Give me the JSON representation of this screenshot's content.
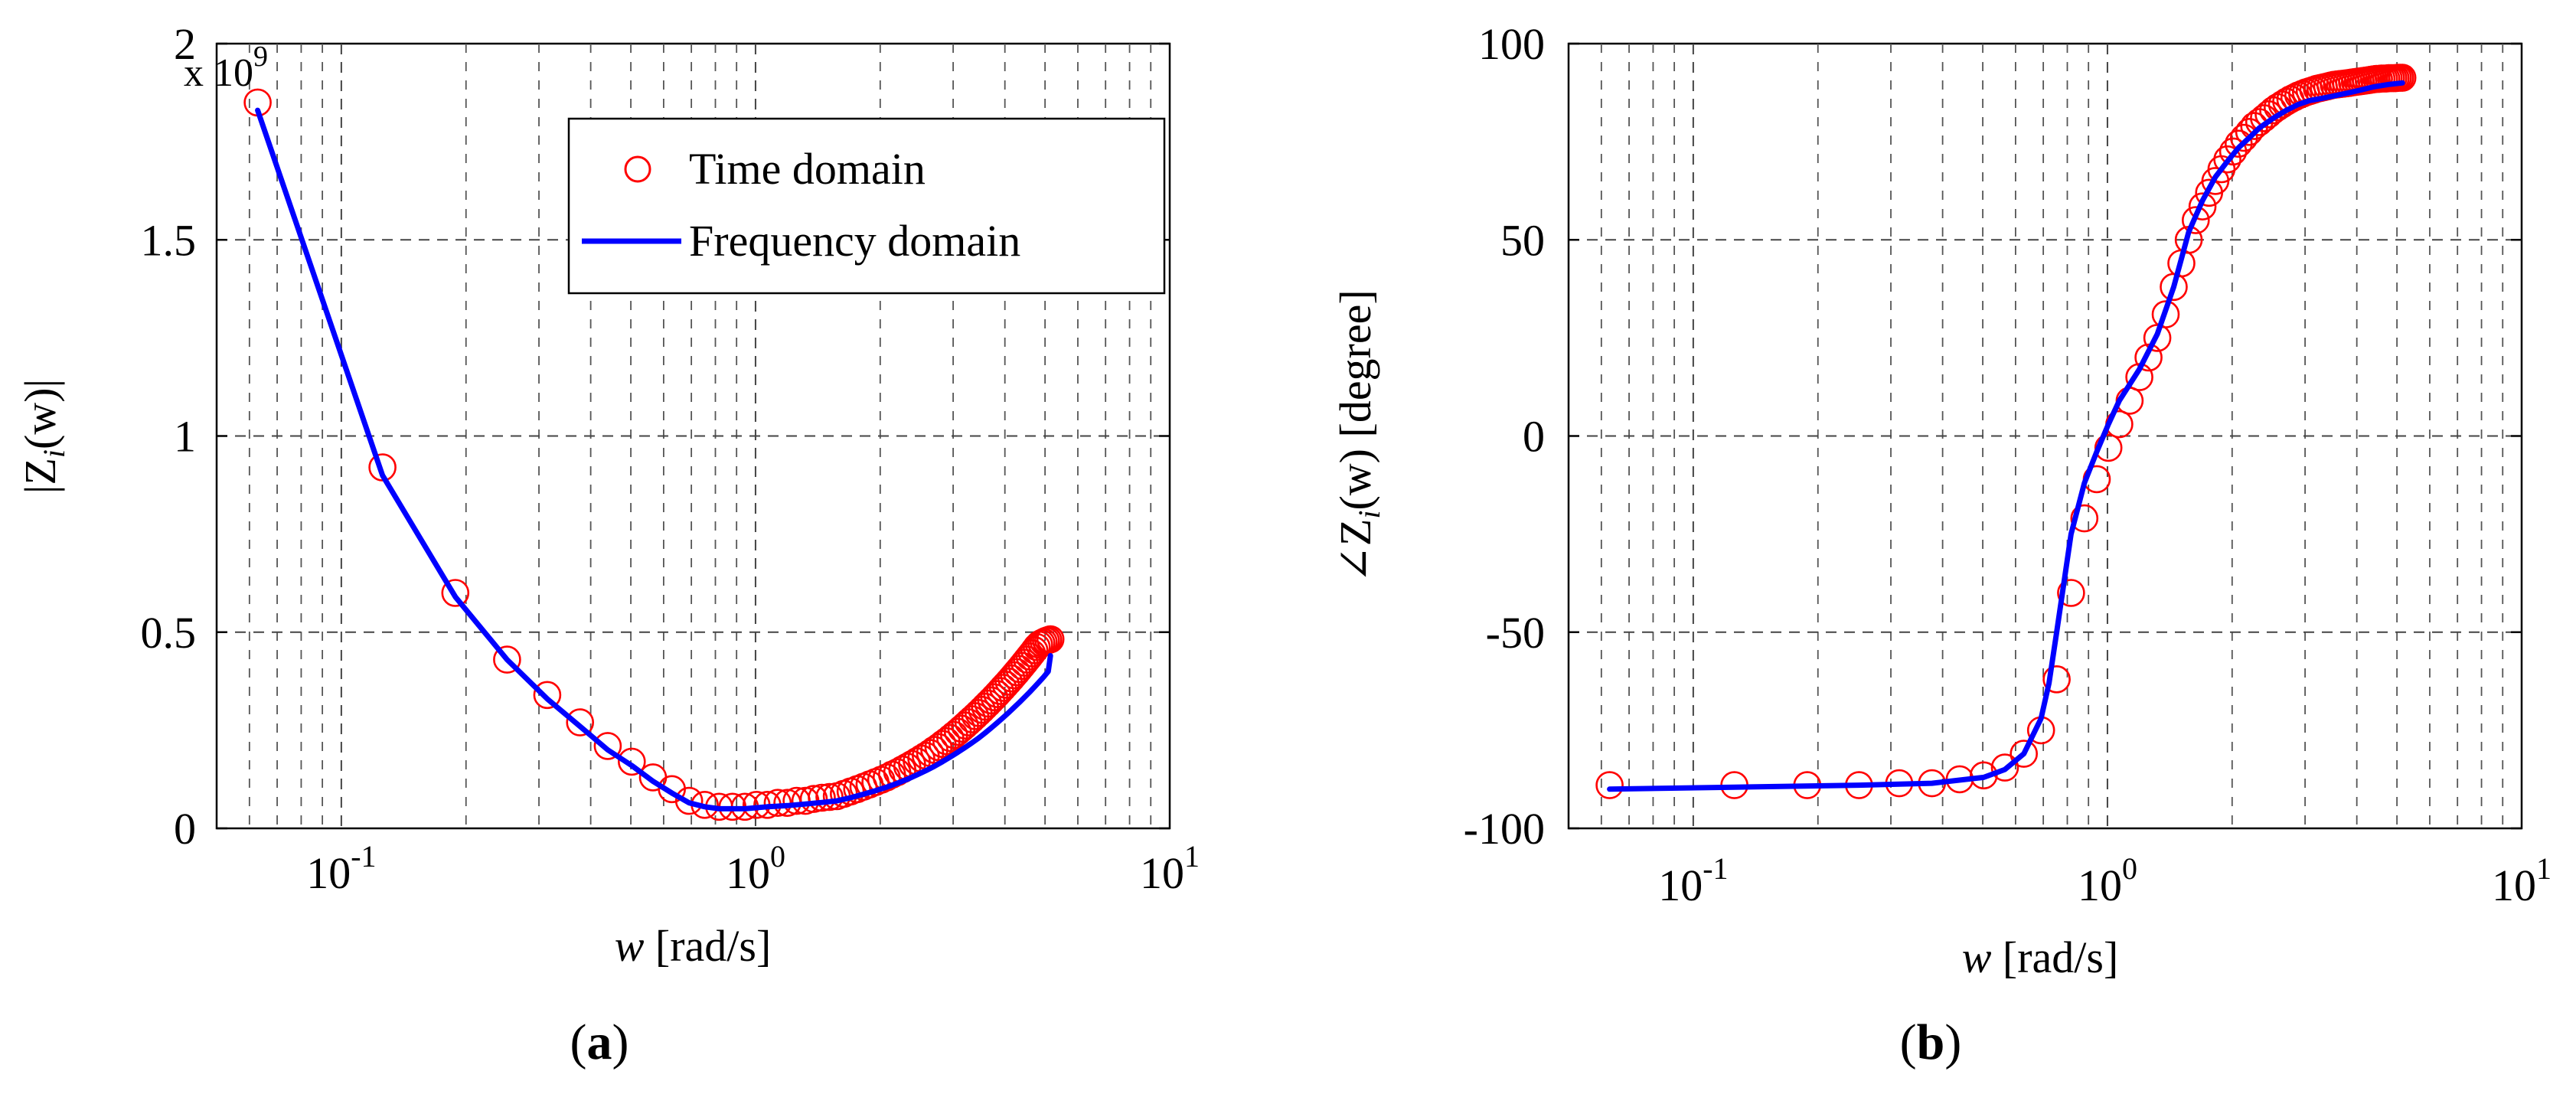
{
  "chart_data": [
    {
      "id": "a",
      "type": "scatter+line",
      "panel_label_prefix": "(",
      "panel_label_bold": "a",
      "panel_label_suffix": ")",
      "xscale": "log",
      "xlim": [
        0.05,
        10
      ],
      "ylim": [
        0,
        2
      ],
      "y_exponent_label": "x 10",
      "y_exponent_power": "9",
      "xlabel_var": "w",
      "xlabel_unit": " [rad/s]",
      "ylabel_pre": "|Z",
      "ylabel_sub": "i",
      "ylabel_post": "(w)|",
      "yticks": [
        0,
        0.5,
        1,
        1.5,
        2
      ],
      "ytick_labels": [
        "0",
        "0.5",
        "1",
        "1.5",
        "2"
      ],
      "xticks": [
        {
          "value": 0.1,
          "base": "10",
          "exp": "-1"
        },
        {
          "value": 1,
          "base": "10",
          "exp": "0"
        },
        {
          "value": 10,
          "base": "10",
          "exp": "1"
        }
      ],
      "legend_position": "top-right",
      "series": [
        {
          "name": "Time domain",
          "style": "markers",
          "color": "#ff0000",
          "x": [
            0.0628,
            0.1257,
            0.1885,
            0.2513,
            0.3142,
            0.377,
            0.4398,
            0.5027,
            0.5655,
            0.6283,
            0.6912,
            0.754,
            0.8168,
            0.8796,
            0.9425,
            1.0053,
            1.0681,
            1.131,
            1.1938,
            1.2566,
            1.3195,
            1.3823,
            1.4451,
            1.508,
            1.5708,
            1.6336,
            1.6965,
            1.7593,
            1.8221,
            1.885,
            1.9478,
            2.0106,
            2.0735,
            2.1363,
            2.1991,
            2.2619,
            2.3248,
            2.3876,
            2.4504,
            2.5133,
            2.5761,
            2.6389,
            2.7018,
            2.7646,
            2.8274,
            2.8903,
            2.9531,
            3.0159,
            3.0788,
            3.1416,
            3.2044,
            3.2673,
            3.3301,
            3.3929,
            3.4558,
            3.5186,
            3.5814,
            3.6442,
            3.7071,
            3.7699,
            3.8327,
            3.8956,
            3.9584,
            4.0212,
            4.0841,
            4.1469,
            4.2097,
            4.2726,
            4.3354,
            4.3982,
            4.4611,
            4.5239,
            4.5867,
            4.6496,
            4.7124,
            4.7752,
            4.8381,
            4.9009,
            4.9637,
            5.0265,
            5.0894,
            5.1522
          ],
          "y": [
            1.85,
            0.92,
            0.6,
            0.43,
            0.34,
            0.27,
            0.21,
            0.17,
            0.13,
            0.1,
            0.07,
            0.06,
            0.055,
            0.055,
            0.055,
            0.06,
            0.06,
            0.065,
            0.065,
            0.07,
            0.07,
            0.075,
            0.078,
            0.08,
            0.082,
            0.088,
            0.094,
            0.1,
            0.106,
            0.112,
            0.118,
            0.124,
            0.13,
            0.137,
            0.143,
            0.15,
            0.157,
            0.164,
            0.171,
            0.178,
            0.185,
            0.192,
            0.2,
            0.207,
            0.215,
            0.222,
            0.23,
            0.238,
            0.246,
            0.254,
            0.262,
            0.27,
            0.278,
            0.286,
            0.294,
            0.302,
            0.31,
            0.318,
            0.326,
            0.334,
            0.342,
            0.35,
            0.358,
            0.366,
            0.374,
            0.382,
            0.39,
            0.398,
            0.406,
            0.414,
            0.422,
            0.43,
            0.438,
            0.446,
            0.454,
            0.462,
            0.468,
            0.472,
            0.475,
            0.478,
            0.48,
            0.482
          ]
        },
        {
          "name": "Frequency domain",
          "style": "line",
          "color": "#0000ff",
          "x": [
            0.0628,
            0.1257,
            0.1885,
            0.2513,
            0.3142,
            0.377,
            0.4398,
            0.5027,
            0.5655,
            0.6283,
            0.6912,
            0.754,
            0.8168,
            0.9425,
            1.0681,
            1.1938,
            1.3195,
            1.4451,
            1.5708,
            1.6965,
            1.8221,
            1.9478,
            2.0735,
            2.1991,
            2.3248,
            2.4504,
            2.5761,
            2.7018,
            2.8274,
            2.9531,
            3.0788,
            3.2044,
            3.3301,
            3.4558,
            3.5814,
            3.7071,
            3.8327,
            3.9584,
            4.0841,
            4.2097,
            4.3354,
            4.4611,
            4.5867,
            4.7124,
            4.8381,
            4.9637,
            5.0894,
            5.1522
          ],
          "y": [
            1.83,
            0.9,
            0.59,
            0.43,
            0.33,
            0.26,
            0.2,
            0.16,
            0.12,
            0.09,
            0.065,
            0.055,
            0.05,
            0.05,
            0.055,
            0.058,
            0.062,
            0.066,
            0.07,
            0.078,
            0.087,
            0.096,
            0.105,
            0.115,
            0.125,
            0.136,
            0.147,
            0.158,
            0.17,
            0.182,
            0.194,
            0.206,
            0.218,
            0.23,
            0.243,
            0.256,
            0.269,
            0.282,
            0.295,
            0.308,
            0.321,
            0.334,
            0.347,
            0.36,
            0.373,
            0.386,
            0.4,
            0.44
          ]
        }
      ]
    },
    {
      "id": "b",
      "type": "scatter+line",
      "panel_label_prefix": "(",
      "panel_label_bold": "b",
      "panel_label_suffix": ")",
      "xscale": "log",
      "xlim": [
        0.05,
        10
      ],
      "ylim": [
        -100,
        100
      ],
      "xlabel_var": "w",
      "xlabel_unit": " [rad/s]",
      "ylabel_pre": "∠Z",
      "ylabel_sub": "i",
      "ylabel_post": "(w) [degree]",
      "yticks": [
        -100,
        -50,
        0,
        50,
        100
      ],
      "ytick_labels": [
        "-100",
        "-50",
        "0",
        "50",
        "100"
      ],
      "xticks": [
        {
          "value": 0.1,
          "base": "10",
          "exp": "-1"
        },
        {
          "value": 1,
          "base": "10",
          "exp": "0"
        },
        {
          "value": 10,
          "base": "10",
          "exp": "1"
        }
      ],
      "series": [
        {
          "name": "Time domain",
          "style": "markers",
          "color": "#ff0000",
          "x": [
            0.0628,
            0.1257,
            0.1885,
            0.2513,
            0.3142,
            0.377,
            0.4398,
            0.5027,
            0.5655,
            0.6283,
            0.6912,
            0.754,
            0.8168,
            0.8796,
            0.9425,
            1.0053,
            1.0681,
            1.131,
            1.1938,
            1.2566,
            1.3195,
            1.3823,
            1.4451,
            1.508,
            1.5708,
            1.6336,
            1.6965,
            1.7593,
            1.8221,
            1.885,
            1.9478,
            2.0106,
            2.0735,
            2.1363,
            2.1991,
            2.2619,
            2.3248,
            2.3876,
            2.4504,
            2.5133,
            2.5761,
            2.6389,
            2.7018,
            2.7646,
            2.8274,
            2.8903,
            2.9531,
            3.0159,
            3.0788,
            3.1416,
            3.2044,
            3.2673,
            3.3301,
            3.3929,
            3.4558,
            3.5186,
            3.5814,
            3.6442,
            3.7071,
            3.7699,
            3.8327,
            3.8956,
            3.9584,
            4.0212,
            4.0841,
            4.1469,
            4.2097,
            4.2726,
            4.3354,
            4.3982,
            4.4611,
            4.5239,
            4.5867,
            4.6496,
            4.7124,
            4.7752,
            4.8381,
            4.9009,
            4.9637,
            5.0265,
            5.0894,
            5.1522
          ],
          "y": [
            -89,
            -89,
            -89,
            -89,
            -88.5,
            -88.5,
            -87.5,
            -86.5,
            -84.5,
            -81,
            -75,
            -62,
            -40,
            -21,
            -11,
            -3,
            3,
            9,
            15,
            20,
            25,
            31,
            38,
            44,
            50,
            55,
            58.5,
            62,
            65,
            68,
            70.5,
            72.5,
            74.5,
            76,
            77.5,
            79,
            80,
            81,
            82,
            83,
            83.8,
            84.5,
            85.2,
            85.8,
            86.3,
            86.8,
            87.2,
            87.6,
            87.9,
            88.2,
            88.5,
            88.7,
            88.9,
            89.1,
            89.3,
            89.5,
            89.6,
            89.7,
            89.8,
            89.9,
            90,
            90.1,
            90.2,
            90.3,
            90.4,
            90.5,
            90.6,
            90.7,
            90.8,
            90.9,
            91,
            91,
            91.1,
            91.1,
            91.1,
            91.2,
            91.2,
            91.2,
            91.2,
            91.3,
            91.3,
            91.3
          ]
        },
        {
          "name": "Frequency domain",
          "style": "line",
          "color": "#0000ff",
          "x": [
            0.0628,
            0.1257,
            0.2513,
            0.377,
            0.5027,
            0.5655,
            0.6283,
            0.6912,
            0.7226,
            0.754,
            0.8168,
            0.8796,
            0.9425,
            1.0053,
            1.0681,
            1.1938,
            1.3195,
            1.4451,
            1.5708,
            1.6965,
            1.8221,
            1.9478,
            2.0735,
            2.1991,
            2.3248,
            2.5133,
            2.7018,
            2.8903,
            3.0788,
            3.2673,
            3.4558,
            3.6442,
            3.8327,
            4.0212,
            4.2097,
            4.3982,
            4.5867,
            4.7752,
            4.9637,
            5.1522
          ],
          "y": [
            -90,
            -89.5,
            -89,
            -88.5,
            -87,
            -85,
            -81,
            -72,
            -63,
            -50,
            -25,
            -12,
            -4,
            3,
            9,
            17,
            26,
            38,
            52,
            60,
            66,
            70,
            73.5,
            76,
            78.5,
            81,
            83,
            84.5,
            85.5,
            86,
            86.5,
            87,
            87.5,
            88,
            88.5,
            89,
            89.3,
            89.6,
            89.8,
            90
          ]
        }
      ]
    }
  ]
}
